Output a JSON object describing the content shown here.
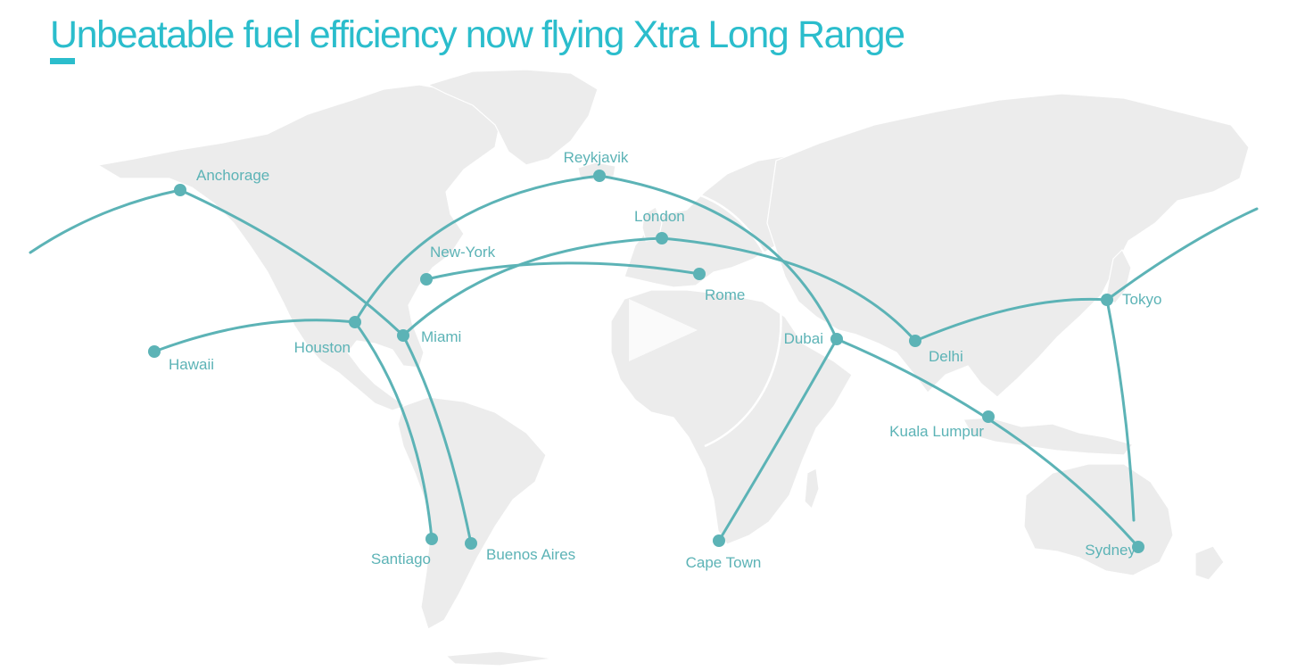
{
  "title": "Unbeatable fuel efficiency now flying Xtra Long Range",
  "accent_color": "#2bbdcc",
  "route_color": "#5cb3b6",
  "land_color": "#ececec",
  "cities": [
    {
      "id": "anchorage",
      "name": "Anchorage",
      "lat": 61.2,
      "lon": -149.9
    },
    {
      "id": "hawaii",
      "name": "Hawaii",
      "lat": 21.3,
      "lon": -157.8
    },
    {
      "id": "houston",
      "name": "Houston",
      "lat": 29.8,
      "lon": -95.4
    },
    {
      "id": "miami",
      "name": "Miami",
      "lat": 25.8,
      "lon": -80.2
    },
    {
      "id": "new-york",
      "name": "New-York",
      "lat": 40.7,
      "lon": -74.0
    },
    {
      "id": "santiago",
      "name": "Santiago",
      "lat": -33.4,
      "lon": -70.7
    },
    {
      "id": "buenos-aires",
      "name": "Buenos Aires",
      "lat": -34.6,
      "lon": -58.4
    },
    {
      "id": "reykjavik",
      "name": "Reykjavik",
      "lat": 64.1,
      "lon": -21.9
    },
    {
      "id": "london",
      "name": "London",
      "lat": 51.5,
      "lon": -0.1
    },
    {
      "id": "rome",
      "name": "Rome",
      "lat": 41.9,
      "lon": 12.5
    },
    {
      "id": "dubai",
      "name": "Dubai",
      "lat": 25.2,
      "lon": 55.3
    },
    {
      "id": "cape-town",
      "name": "Cape Town",
      "lat": -33.9,
      "lon": 18.4
    },
    {
      "id": "delhi",
      "name": "Delhi",
      "lat": 28.6,
      "lon": 77.2
    },
    {
      "id": "kuala-lumpur",
      "name": "Kuala Lumpur",
      "lat": 3.1,
      "lon": 101.7
    },
    {
      "id": "tokyo",
      "name": "Tokyo",
      "lat": 35.7,
      "lon": 139.7
    },
    {
      "id": "sydney",
      "name": "Sydney",
      "lat": -33.9,
      "lon": 151.2
    }
  ],
  "routes": [
    {
      "id": "pacific-anchorage",
      "from": null,
      "to": "anchorage"
    },
    {
      "id": "anchorage-miami",
      "from": "anchorage",
      "to": "miami"
    },
    {
      "id": "hawaii-houston",
      "from": "hawaii",
      "to": "houston"
    },
    {
      "id": "houston-reykjavik",
      "from": "houston",
      "to": "reykjavik"
    },
    {
      "id": "reykjavik-dubai",
      "from": "reykjavik",
      "to": "dubai"
    },
    {
      "id": "houston-santiago",
      "from": "houston",
      "to": "santiago"
    },
    {
      "id": "miami-buenos-aires",
      "from": "miami",
      "to": "buenos-aires"
    },
    {
      "id": "new-york-rome",
      "from": "new-york",
      "to": "rome"
    },
    {
      "id": "miami-london",
      "from": "miami",
      "to": "london"
    },
    {
      "id": "london-delhi",
      "from": "london",
      "to": "delhi"
    },
    {
      "id": "dubai-cape-town",
      "from": "dubai",
      "to": "cape-town"
    },
    {
      "id": "dubai-sydney",
      "from": "dubai",
      "to": "sydney"
    },
    {
      "id": "delhi-tokyo",
      "from": "delhi",
      "to": "tokyo"
    },
    {
      "id": "tokyo-sydney",
      "from": "tokyo",
      "to": "sydney"
    },
    {
      "id": "tokyo-pacific",
      "from": "tokyo",
      "to": null
    }
  ]
}
